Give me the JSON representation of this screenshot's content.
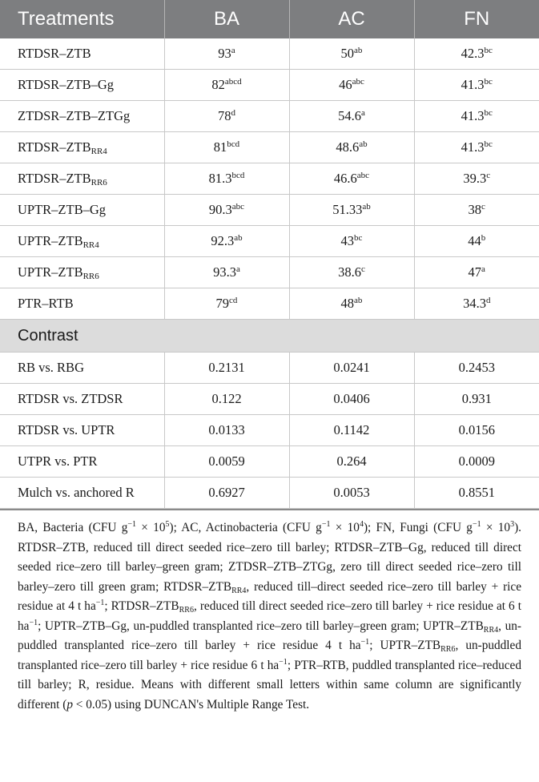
{
  "header": {
    "treatments": "Treatments",
    "ba": "BA",
    "ac": "AC",
    "fn": "FN"
  },
  "rows": [
    {
      "name": "RTDSR–ZTB",
      "name_sub": "",
      "ba": "93",
      "ba_sup": "a",
      "ac": "50",
      "ac_sup": "ab",
      "fn": "42.3",
      "fn_sup": "bc"
    },
    {
      "name": "RTDSR–ZTB–Gg",
      "name_sub": "",
      "ba": "82",
      "ba_sup": "abcd",
      "ac": "46",
      "ac_sup": "abc",
      "fn": "41.3",
      "fn_sup": "bc"
    },
    {
      "name": "ZTDSR–ZTB–ZTGg",
      "name_sub": "",
      "ba": "78",
      "ba_sup": "d",
      "ac": "54.6",
      "ac_sup": "a",
      "fn": "41.3",
      "fn_sup": "bc"
    },
    {
      "name": "RTDSR–ZTB",
      "name_sub": "RR4",
      "ba": "81",
      "ba_sup": "bcd",
      "ac": "48.6",
      "ac_sup": "ab",
      "fn": "41.3",
      "fn_sup": "bc"
    },
    {
      "name": "RTDSR–ZTB",
      "name_sub": "RR6",
      "ba": "81.3",
      "ba_sup": "bcd",
      "ac": "46.6",
      "ac_sup": "abc",
      "fn": "39.3",
      "fn_sup": "c"
    },
    {
      "name": "UPTR–ZTB–Gg",
      "name_sub": "",
      "ba": "90.3",
      "ba_sup": "abc",
      "ac": "51.33",
      "ac_sup": "ab",
      "fn": "38",
      "fn_sup": "c"
    },
    {
      "name": "UPTR–ZTB",
      "name_sub": "RR4",
      "ba": "92.3",
      "ba_sup": "ab",
      "ac": "43",
      "ac_sup": "bc",
      "fn": "44",
      "fn_sup": "b"
    },
    {
      "name": "UPTR–ZTB",
      "name_sub": "RR6",
      "ba": "93.3",
      "ba_sup": "a",
      "ac": "38.6",
      "ac_sup": "c",
      "fn": "47",
      "fn_sup": "a"
    },
    {
      "name": "PTR–RTB",
      "name_sub": "",
      "ba": "79",
      "ba_sup": "cd",
      "ac": "48",
      "ac_sup": "ab",
      "fn": "34.3",
      "fn_sup": "d"
    }
  ],
  "contrast_label": "Contrast",
  "contrasts": [
    {
      "name": "RB vs. RBG",
      "ba": "0.2131",
      "ac": "0.0241",
      "fn": "0.2453"
    },
    {
      "name": "RTDSR vs. ZTDSR",
      "ba": "0.122",
      "ac": "0.0406",
      "fn": "0.931"
    },
    {
      "name": "RTDSR vs. UPTR",
      "ba": "0.0133",
      "ac": "0.1142",
      "fn": "0.0156"
    },
    {
      "name": "UTPR vs. PTR",
      "ba": "0.0059",
      "ac": "0.264",
      "fn": "0.0009"
    },
    {
      "name": "Mulch vs. anchored R",
      "ba": "0.6927",
      "ac": "0.0053",
      "fn": "0.8551"
    }
  ],
  "footnote": {
    "p1": "BA, Bacteria (CFU g",
    "p1_sup": "−1",
    "p2": " × 10",
    "p2_sup": "5",
    "p3": "); AC, Actinobacteria (CFU g",
    "p3_sup": "−1",
    "p4": " × 10",
    "p4_sup": "4",
    "p5": "); FN, Fungi (CFU g",
    "p5_sup": "−1",
    "p6": " × 10",
    "p6_sup": "3",
    "p7": "). RTDSR–ZTB, reduced till direct seeded rice–zero till barley; RTDSR–ZTB–Gg, reduced till direct seeded rice–zero till barley–green gram; ZTDSR–ZTB–ZTGg, zero till direct seeded rice–zero till barley–zero till green gram; RTDSR–ZTB",
    "p7_sub": "RR4",
    "p8": ", reduced till–direct seeded rice–zero till barley + rice residue at 4 t ha",
    "p8_sup": "−1",
    "p9": "; RTDSR–ZTB",
    "p9_sub": "RR6",
    "p10": ", reduced till direct seeded rice–zero till barley + rice residue at 6 t ha",
    "p10_sup": "−1",
    "p11": "; UPTR–ZTB–Gg, un-puddled transplanted rice–zero till barley–green gram; UPTR–ZTB",
    "p11_sub": "RR4",
    "p12": ", un-puddled transplanted rice–zero till barley + rice residue 4 t ha",
    "p12_sup": "−1",
    "p13": "; UPTR–ZTB",
    "p13_sub": "RR6",
    "p14": ", un-puddled transplanted rice–zero till barley + rice residue 6 t ha",
    "p14_sup": "−1",
    "p15": "; PTR–RTB, puddled transplanted rice–reduced till barley; R, residue. Means with different small letters within same column are significantly different (",
    "p15_italic": "p",
    "p16": " < 0.05) using DUNCAN's Multiple Range Test."
  }
}
